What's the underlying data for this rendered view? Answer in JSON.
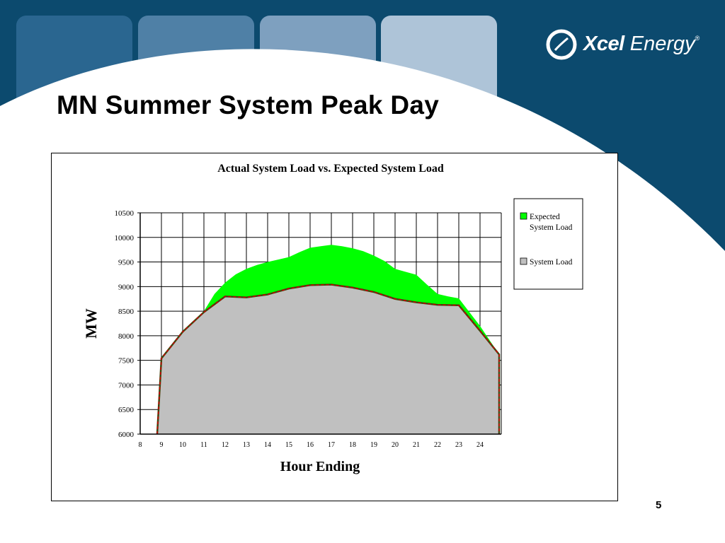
{
  "slide": {
    "title": "MN Summer System Peak Day",
    "page_number": "5"
  },
  "logo": {
    "bold": "Xcel",
    "rest": " Energy",
    "reg": "®"
  },
  "colors": {
    "navy": "#0c4a6e",
    "expected": "#00ff00",
    "actual": "#c0c0c0",
    "line_dashed": "#cc0000",
    "line_dark": "#3a4a10"
  },
  "chart_data": {
    "type": "area",
    "title": "Actual System Load vs. Expected System Load",
    "xlabel": "Hour Ending",
    "ylabel": "MW",
    "x_ticks": [
      "8",
      "9",
      "10",
      "11",
      "12",
      "13",
      "14",
      "15",
      "16",
      "17",
      "18",
      "19",
      "20",
      "21",
      "22",
      "23",
      "24"
    ],
    "ylim": [
      6000,
      10500
    ],
    "y_ticks": [
      6000,
      6500,
      7000,
      7500,
      8000,
      8500,
      9000,
      9500,
      10000,
      10500
    ],
    "grid": true,
    "legend_position": "right",
    "series": [
      {
        "name": "Expected System Load",
        "color": "#00ff00",
        "x": [
          8.8,
          9,
          10,
          11,
          11.5,
          12,
          12.5,
          13,
          13.5,
          14,
          14.5,
          15,
          15.5,
          16,
          16.5,
          17,
          17.5,
          18,
          18.5,
          19,
          19.5,
          20,
          20.5,
          21,
          21.5,
          22,
          22.5,
          23,
          24,
          24.9,
          24.9
        ],
        "y": [
          6000,
          7550,
          8100,
          8500,
          8850,
          9080,
          9250,
          9360,
          9440,
          9500,
          9550,
          9600,
          9700,
          9790,
          9820,
          9850,
          9820,
          9780,
          9720,
          9630,
          9520,
          9360,
          9300,
          9240,
          9040,
          8850,
          8800,
          8760,
          8200,
          7620,
          6000
        ]
      },
      {
        "name": "System Load",
        "color": "#c0c0c0",
        "x": [
          8.8,
          9,
          10,
          11,
          12,
          13,
          14,
          15,
          16,
          17,
          18,
          19,
          20,
          21,
          22,
          23,
          24,
          24.9,
          24.9
        ],
        "y": [
          6000,
          7540,
          8080,
          8480,
          8800,
          8780,
          8840,
          8960,
          9030,
          9040,
          8980,
          8890,
          8750,
          8680,
          8630,
          8620,
          8100,
          7620,
          6000
        ]
      }
    ]
  }
}
